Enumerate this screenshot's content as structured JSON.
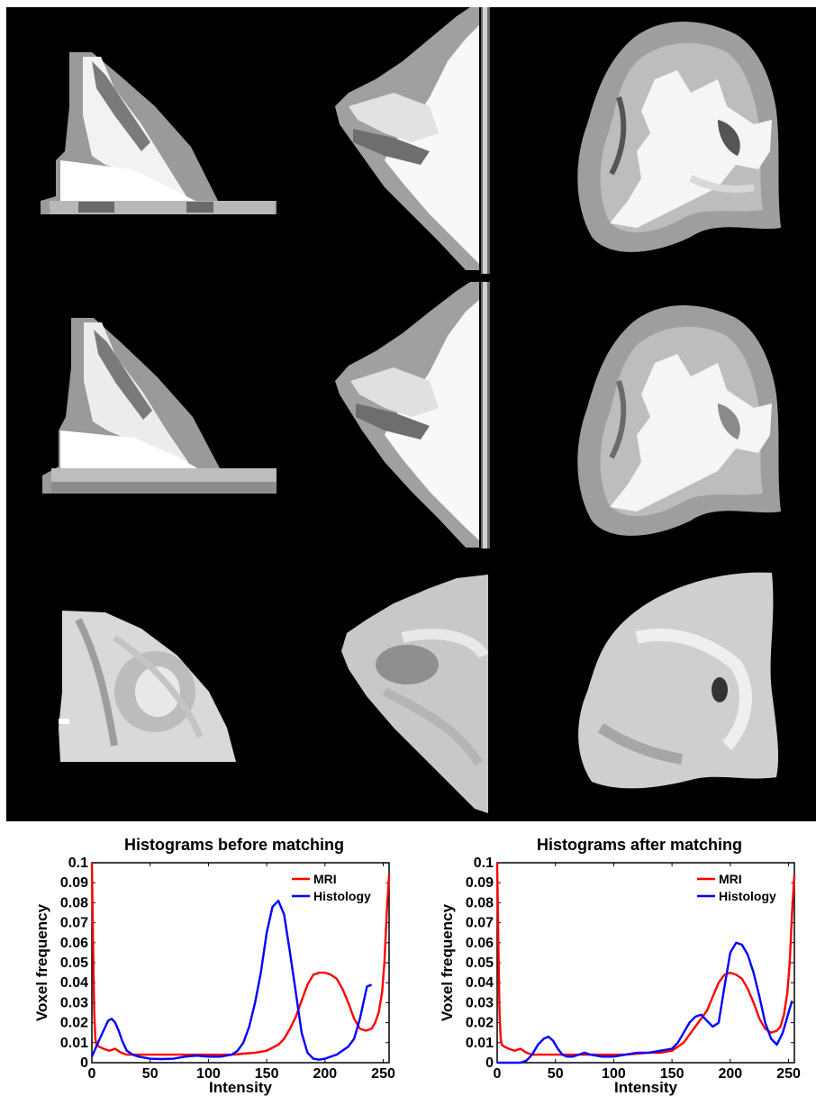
{
  "chart_data": [
    {
      "type": "line",
      "title": "Histograms before matching",
      "xlabel": "Intensity",
      "ylabel": "Voxel frequency",
      "xlim": [
        0,
        255
      ],
      "ylim": [
        0,
        0.1
      ],
      "xticks": [
        "0",
        "50",
        "100",
        "150",
        "200",
        "250"
      ],
      "yticks": [
        "0",
        "0.01",
        "0.02",
        "0.03",
        "0.04",
        "0.05",
        "0.06",
        "0.07",
        "0.08",
        "0.09",
        "0.1"
      ],
      "legend": "top-right",
      "series": [
        {
          "name": "MRI",
          "color": "#ff0000",
          "x": [
            0,
            1,
            2,
            3,
            4,
            6,
            10,
            15,
            20,
            25,
            30,
            40,
            50,
            60,
            70,
            80,
            90,
            100,
            110,
            120,
            130,
            140,
            150,
            160,
            165,
            170,
            175,
            180,
            185,
            190,
            195,
            200,
            205,
            210,
            215,
            220,
            225,
            230,
            235,
            240,
            243,
            246,
            249,
            251,
            253,
            255
          ],
          "y": [
            0.1,
            0.06,
            0.025,
            0.012,
            0.009,
            0.008,
            0.007,
            0.006,
            0.007,
            0.005,
            0.004,
            0.004,
            0.004,
            0.004,
            0.004,
            0.004,
            0.004,
            0.004,
            0.004,
            0.004,
            0.0045,
            0.005,
            0.006,
            0.009,
            0.012,
            0.017,
            0.023,
            0.031,
            0.039,
            0.044,
            0.045,
            0.045,
            0.044,
            0.042,
            0.037,
            0.03,
            0.022,
            0.017,
            0.016,
            0.017,
            0.02,
            0.025,
            0.035,
            0.05,
            0.075,
            0.094
          ]
        },
        {
          "name": "Histology",
          "color": "#0000ff",
          "x": [
            0,
            3,
            6,
            10,
            14,
            17,
            20,
            23,
            26,
            30,
            35,
            40,
            50,
            60,
            70,
            80,
            90,
            100,
            110,
            120,
            125,
            130,
            135,
            140,
            145,
            150,
            155,
            160,
            165,
            170,
            175,
            180,
            185,
            190,
            195,
            200,
            205,
            210,
            220,
            225,
            230,
            233,
            236,
            240
          ],
          "y": [
            0.003,
            0.007,
            0.011,
            0.016,
            0.021,
            0.022,
            0.02,
            0.016,
            0.011,
            0.006,
            0.004,
            0.003,
            0.002,
            0.0018,
            0.002,
            0.003,
            0.0035,
            0.003,
            0.003,
            0.004,
            0.006,
            0.01,
            0.018,
            0.03,
            0.045,
            0.065,
            0.078,
            0.081,
            0.074,
            0.055,
            0.035,
            0.015,
            0.005,
            0.002,
            0.0015,
            0.002,
            0.003,
            0.004,
            0.008,
            0.012,
            0.022,
            0.03,
            0.038,
            0.039
          ]
        }
      ]
    },
    {
      "type": "line",
      "title": "Histograms after matching",
      "xlabel": "Intensity",
      "ylabel": "Voxel frequency",
      "xlim": [
        0,
        255
      ],
      "ylim": [
        0,
        0.1
      ],
      "xticks": [
        "0",
        "50",
        "100",
        "150",
        "200",
        "250"
      ],
      "yticks": [
        "0",
        "0.01",
        "0.02",
        "0.03",
        "0.04",
        "0.05",
        "0.06",
        "0.07",
        "0.08",
        "0.09",
        "0.1"
      ],
      "legend": "top-right",
      "series": [
        {
          "name": "MRI",
          "color": "#ff0000",
          "x": [
            0,
            1,
            2,
            3,
            4,
            6,
            10,
            15,
            20,
            25,
            30,
            40,
            50,
            60,
            70,
            80,
            90,
            100,
            110,
            120,
            130,
            140,
            150,
            160,
            165,
            170,
            175,
            180,
            185,
            190,
            195,
            200,
            205,
            210,
            215,
            220,
            225,
            230,
            235,
            240,
            243,
            246,
            249,
            251,
            253,
            255
          ],
          "y": [
            0.1,
            0.06,
            0.025,
            0.012,
            0.009,
            0.008,
            0.007,
            0.006,
            0.007,
            0.005,
            0.004,
            0.004,
            0.004,
            0.004,
            0.004,
            0.004,
            0.004,
            0.004,
            0.004,
            0.0045,
            0.005,
            0.005,
            0.006,
            0.01,
            0.014,
            0.018,
            0.022,
            0.026,
            0.033,
            0.04,
            0.044,
            0.045,
            0.044,
            0.042,
            0.037,
            0.03,
            0.022,
            0.017,
            0.015,
            0.016,
            0.018,
            0.024,
            0.035,
            0.05,
            0.075,
            0.094
          ]
        },
        {
          "name": "Histology",
          "color": "#0000ff",
          "x": [
            0,
            10,
            20,
            25,
            30,
            35,
            40,
            44,
            48,
            52,
            56,
            60,
            65,
            70,
            75,
            80,
            90,
            100,
            110,
            120,
            130,
            140,
            150,
            155,
            160,
            165,
            170,
            175,
            180,
            185,
            190,
            195,
            200,
            205,
            210,
            215,
            220,
            225,
            230,
            235,
            240,
            245,
            250,
            253
          ],
          "y": [
            0.0,
            0.0,
            0.0,
            0.001,
            0.004,
            0.009,
            0.012,
            0.013,
            0.011,
            0.007,
            0.004,
            0.003,
            0.003,
            0.004,
            0.005,
            0.004,
            0.003,
            0.003,
            0.004,
            0.005,
            0.005,
            0.006,
            0.007,
            0.01,
            0.015,
            0.02,
            0.023,
            0.024,
            0.021,
            0.018,
            0.02,
            0.038,
            0.055,
            0.06,
            0.059,
            0.054,
            0.045,
            0.033,
            0.02,
            0.012,
            0.009,
            0.015,
            0.025,
            0.031
          ]
        }
      ]
    }
  ]
}
